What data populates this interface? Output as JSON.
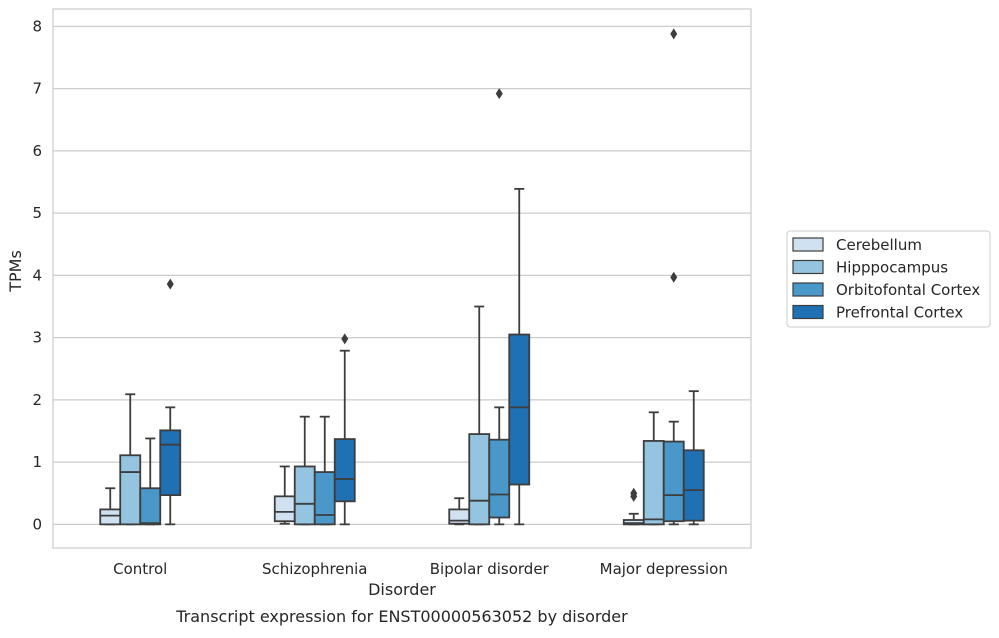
{
  "chart_data": {
    "type": "box",
    "title": "",
    "caption": "Transcript expression for ENST00000563052 by disorder",
    "xlabel": "Disorder",
    "ylabel": "TPMs",
    "categories": [
      "Control",
      "Schizophrenia",
      "Bipolar disorder",
      "Major depression"
    ],
    "ylim": [
      -0.38,
      8.28
    ],
    "yticks": [
      "0",
      "1",
      "2",
      "3",
      "4",
      "5",
      "6",
      "7",
      "8"
    ],
    "grid": "horizontal",
    "legend_position": "right",
    "series": [
      {
        "name": "Cerebellum",
        "color": "#d0e1f2",
        "boxes": [
          {
            "min": 0,
            "q1": 0,
            "median": 0.14,
            "q3": 0.24,
            "max": 0.58,
            "outliers": []
          },
          {
            "min": 0.01,
            "q1": 0.05,
            "median": 0.2,
            "q3": 0.45,
            "max": 0.93,
            "outliers": []
          },
          {
            "min": 0,
            "q1": 0.01,
            "median": 0.06,
            "q3": 0.24,
            "max": 0.42,
            "outliers": []
          },
          {
            "min": 0,
            "q1": 0,
            "median": 0.02,
            "q3": 0.07,
            "max": 0.17,
            "outliers": [
              0.45,
              0.5
            ]
          }
        ]
      },
      {
        "name": "Hipppocampus",
        "color": "#94c4df",
        "boxes": [
          {
            "min": 0,
            "q1": 0,
            "median": 0.84,
            "q3": 1.11,
            "max": 2.09,
            "outliers": []
          },
          {
            "min": 0,
            "q1": 0,
            "median": 0.33,
            "q3": 0.93,
            "max": 1.73,
            "outliers": []
          },
          {
            "min": 0,
            "q1": 0,
            "median": 0.38,
            "q3": 1.45,
            "max": 3.5,
            "outliers": []
          },
          {
            "min": 0,
            "q1": 0,
            "median": 0.08,
            "q3": 1.34,
            "max": 1.8,
            "outliers": []
          }
        ]
      },
      {
        "name": "Orbitofontal Cortex",
        "color": "#4a98c9",
        "boxes": [
          {
            "min": 0,
            "q1": 0,
            "median": 0.02,
            "q3": 0.58,
            "max": 1.38,
            "outliers": []
          },
          {
            "min": 0,
            "q1": 0,
            "median": 0.15,
            "q3": 0.84,
            "max": 1.73,
            "outliers": []
          },
          {
            "min": 0,
            "q1": 0.11,
            "median": 0.48,
            "q3": 1.36,
            "max": 1.88,
            "outliers": [
              6.92
            ]
          },
          {
            "min": 0,
            "q1": 0.05,
            "median": 0.47,
            "q3": 1.33,
            "max": 1.65,
            "outliers": [
              3.97,
              7.88
            ]
          }
        ]
      },
      {
        "name": "Prefrontal Cortex",
        "color": "#2070b4",
        "boxes": [
          {
            "min": 0,
            "q1": 0.47,
            "median": 1.28,
            "q3": 1.51,
            "max": 1.88,
            "outliers": [
              3.86
            ]
          },
          {
            "min": 0,
            "q1": 0.37,
            "median": 0.73,
            "q3": 1.37,
            "max": 2.79,
            "outliers": [
              2.98
            ]
          },
          {
            "min": 0,
            "q1": 0.64,
            "median": 1.88,
            "q3": 3.05,
            "max": 5.39,
            "outliers": []
          },
          {
            "min": 0,
            "q1": 0.06,
            "median": 0.55,
            "q3": 1.19,
            "max": 2.14,
            "outliers": []
          }
        ]
      }
    ]
  }
}
